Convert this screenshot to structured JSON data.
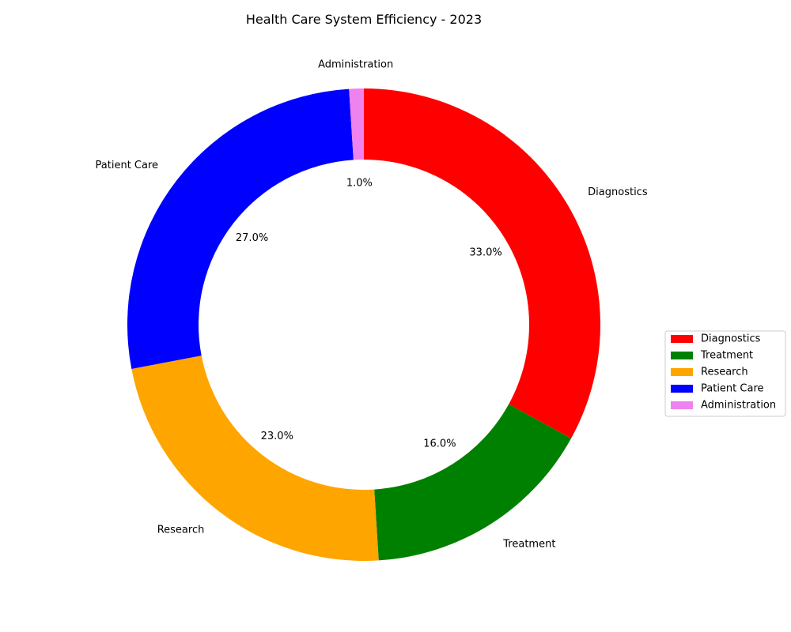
{
  "chart_data": {
    "type": "pie",
    "variant": "donut",
    "title": "Health Care System Efficiency - 2023",
    "categories": [
      "Diagnostics",
      "Treatment",
      "Research",
      "Patient Care",
      "Administration"
    ],
    "values": [
      33.0,
      16.0,
      23.0,
      27.0,
      1.0
    ],
    "percent_labels": [
      "33.0%",
      "16.0%",
      "23.0%",
      "27.0%",
      "1.0%"
    ],
    "colors": [
      "#ff0000",
      "#008000",
      "#ffa500",
      "#0000ff",
      "#ee82ee"
    ],
    "start_angle_deg": 90,
    "direction": "clockwise",
    "legend": {
      "placement": "center-right",
      "entries": [
        "Diagnostics",
        "Treatment",
        "Research",
        "Patient Care",
        "Administration"
      ]
    }
  }
}
